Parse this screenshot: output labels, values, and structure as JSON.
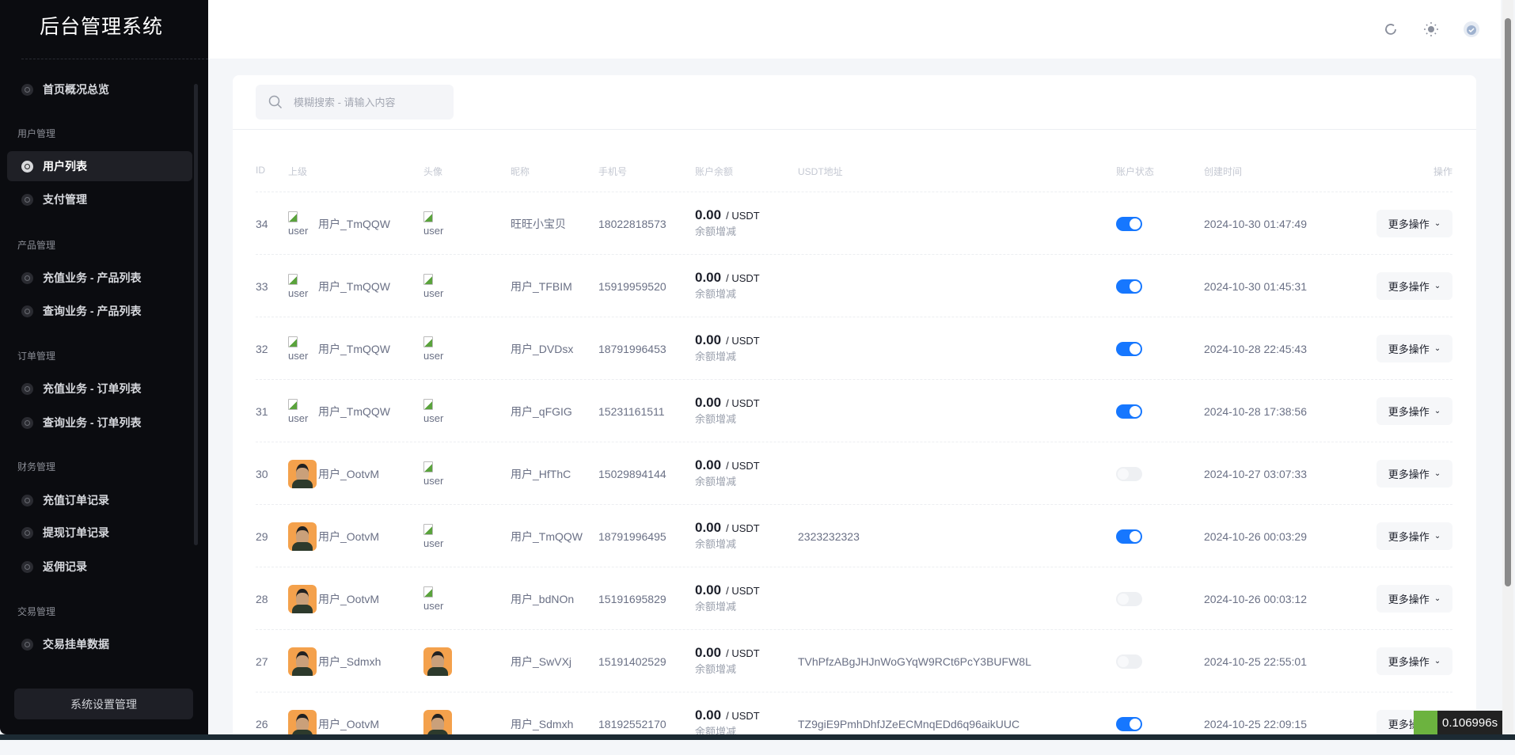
{
  "sidebar": {
    "title": "后台管理系统",
    "home": "首页概况总览",
    "groups": [
      {
        "label": "用户管理",
        "items": [
          "用户列表",
          "支付管理"
        ]
      },
      {
        "label": "产品管理",
        "items": [
          "充值业务 - 产品列表",
          "查询业务 - 产品列表"
        ]
      },
      {
        "label": "订单管理",
        "items": [
          "充值业务 - 订单列表",
          "查询业务 - 订单列表"
        ]
      },
      {
        "label": "财务管理",
        "items": [
          "充值订单记录",
          "提现订单记录",
          "返佣记录"
        ]
      },
      {
        "label": "交易管理",
        "items": [
          "交易挂单数据"
        ]
      }
    ],
    "active": "用户列表",
    "settings_button": "系统设置管理"
  },
  "header": {
    "icons": [
      "refresh-icon",
      "theme-toggle-icon",
      "avatar-icon"
    ]
  },
  "search": {
    "placeholder": "模糊搜索 - 请输入内容",
    "value": ""
  },
  "table": {
    "columns": [
      "ID",
      "上级",
      "头像",
      "昵称",
      "手机号",
      "账户余额",
      "USDT地址",
      "账户状态",
      "创建时间",
      "操作"
    ],
    "balance_unit": "/ USDT",
    "balance_action": "余额增减",
    "broken_alt": "user",
    "action_label": "更多操作",
    "rows": [
      {
        "id": "34",
        "parent": "用户_TmQQW",
        "parent_avatar": "broken",
        "avatar": "broken",
        "nickname": "旺旺小宝贝",
        "phone": "18022818573",
        "balance": "0.00",
        "usdt": "",
        "enabled": true,
        "created": "2024-10-30 01:47:49"
      },
      {
        "id": "33",
        "parent": "用户_TmQQW",
        "parent_avatar": "broken",
        "avatar": "broken",
        "nickname": "用户_TFBIM",
        "phone": "15919959520",
        "balance": "0.00",
        "usdt": "",
        "enabled": true,
        "created": "2024-10-30 01:45:31"
      },
      {
        "id": "32",
        "parent": "用户_TmQQW",
        "parent_avatar": "broken",
        "avatar": "broken",
        "nickname": "用户_DVDsx",
        "phone": "18791996453",
        "balance": "0.00",
        "usdt": "",
        "enabled": true,
        "created": "2024-10-28 22:45:43"
      },
      {
        "id": "31",
        "parent": "用户_TmQQW",
        "parent_avatar": "broken",
        "avatar": "broken",
        "nickname": "用户_qFGIG",
        "phone": "15231161511",
        "balance": "0.00",
        "usdt": "",
        "enabled": true,
        "created": "2024-10-28 17:38:56"
      },
      {
        "id": "30",
        "parent": "用户_OotvM",
        "parent_avatar": "photo",
        "avatar": "broken",
        "nickname": "用户_HfThC",
        "phone": "15029894144",
        "balance": "0.00",
        "usdt": "",
        "enabled": false,
        "created": "2024-10-27 03:07:33"
      },
      {
        "id": "29",
        "parent": "用户_OotvM",
        "parent_avatar": "photo",
        "avatar": "broken",
        "nickname": "用户_TmQQW",
        "phone": "18791996495",
        "balance": "0.00",
        "usdt": "2323232323",
        "enabled": true,
        "created": "2024-10-26 00:03:29"
      },
      {
        "id": "28",
        "parent": "用户_OotvM",
        "parent_avatar": "photo",
        "avatar": "broken",
        "nickname": "用户_bdNOn",
        "phone": "15191695829",
        "balance": "0.00",
        "usdt": "",
        "enabled": false,
        "created": "2024-10-26 00:03:12"
      },
      {
        "id": "27",
        "parent": "用户_Sdmxh",
        "parent_avatar": "photo",
        "avatar": "photo",
        "nickname": "用户_SwVXj",
        "phone": "15191402529",
        "balance": "0.00",
        "usdt": "TVhPfzABgJHJnWoGYqW9RCt6PcY3BUFW8L",
        "enabled": false,
        "created": "2024-10-25 22:55:01"
      },
      {
        "id": "26",
        "parent": "用户_OotvM",
        "parent_avatar": "photo",
        "avatar": "photo",
        "nickname": "用户_Sdmxh",
        "phone": "18192552170",
        "balance": "0.00",
        "usdt": "TZ9giE9PmhDhfJZeECMnqEDd6q96aikUUC",
        "enabled": true,
        "created": "2024-10-25 22:09:15"
      }
    ]
  },
  "timer": "0.106996s",
  "colors": {
    "accent": "#1677ff",
    "sidebar_bg": "#0b0c10",
    "page_bg": "#f4f6f9"
  }
}
